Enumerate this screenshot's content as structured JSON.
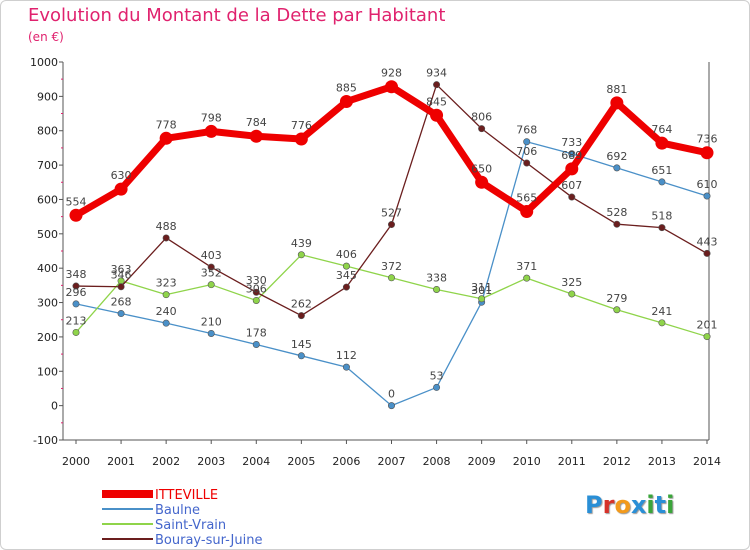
{
  "title": "Evolution du Montant de la Dette par Habitant",
  "subtitle": "(en €)",
  "logo": {
    "text": "Proxiti",
    "colors": [
      "#2a8fd6",
      "#d6322a",
      "#f29a1c",
      "#2a8fd6",
      "#3aa53a",
      "#2a8fd6",
      "#3aa53a"
    ]
  },
  "chart_data": {
    "type": "line",
    "x": [
      "2000",
      "2001",
      "2002",
      "2003",
      "2004",
      "2005",
      "2006",
      "2007",
      "2008",
      "2009",
      "2010",
      "2011",
      "2012",
      "2013",
      "2014"
    ],
    "ylim": [
      -100,
      1000
    ],
    "yticks": [
      "-100",
      "0",
      "100",
      "200",
      "300",
      "400",
      "500",
      "600",
      "700",
      "800",
      "900",
      "1000"
    ],
    "grid": false,
    "legend": "bottom-left",
    "series": [
      {
        "name": "ITTEVILLE",
        "color": "#ee0000",
        "bold": true,
        "values": [
          554,
          630,
          778,
          798,
          784,
          776,
          885,
          928,
          845,
          650,
          565,
          689,
          881,
          764,
          736
        ]
      },
      {
        "name": "Baulne",
        "color": "#4a90c8",
        "values": [
          296,
          268,
          240,
          210,
          178,
          145,
          112,
          0,
          53,
          301,
          768,
          733,
          692,
          651,
          610
        ]
      },
      {
        "name": "Saint-Vrain",
        "color": "#8fd44a",
        "values": [
          213,
          363,
          323,
          352,
          306,
          439,
          406,
          372,
          338,
          311,
          371,
          325,
          279,
          241,
          201
        ]
      },
      {
        "name": "Bouray-sur-Juine",
        "color": "#6b1e1e",
        "values": [
          348,
          346,
          488,
          403,
          330,
          262,
          345,
          527,
          934,
          806,
          706,
          607,
          528,
          518,
          443
        ]
      }
    ]
  }
}
